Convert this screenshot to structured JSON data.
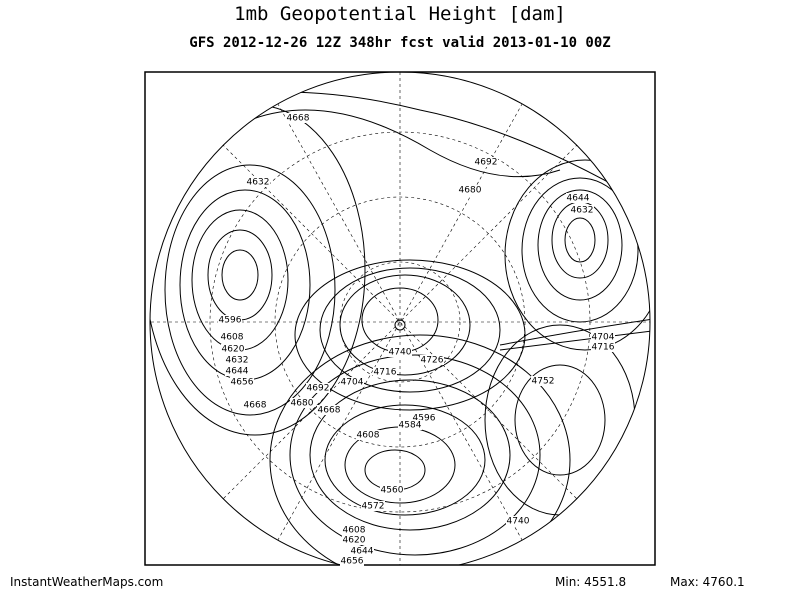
{
  "header": {
    "title": "1mb Geopotential Height [dam]",
    "subtitle": "GFS 2012-12-26 12Z 348hr fcst valid 2013-01-10 00Z"
  },
  "contour_labels": [
    "4668",
    "4632",
    "4596",
    "4608",
    "4620",
    "4632",
    "4644",
    "4656",
    "4668",
    "4692",
    "4680",
    "4644",
    "4632",
    "4740",
    "4726",
    "4716",
    "4704",
    "4692",
    "4680",
    "4668",
    "4608",
    "4596",
    "4584",
    "4560",
    "4572",
    "4752",
    "4740",
    "4716",
    "4704",
    "4608",
    "4620",
    "4644",
    "4656"
  ],
  "footer": {
    "source": "InstantWeatherMaps.com",
    "min": "Min: 4551.8",
    "max": "Max: 4760.1"
  }
}
